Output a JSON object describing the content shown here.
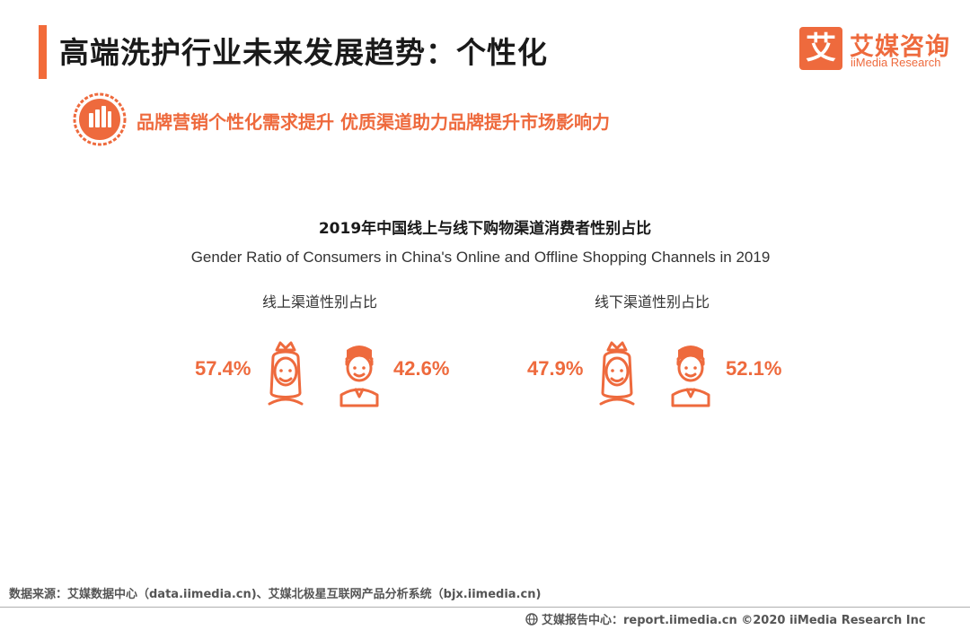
{
  "header": {
    "title": "高端洗护行业未来发展趋势：个性化",
    "logo_mark": "艾",
    "logo_cn": "艾媒咨询",
    "logo_en": "iiMedia Research",
    "subtitle": "品牌营销个性化需求提升  优质渠道助力品牌提升市场影响力"
  },
  "colors": {
    "accent": "#EE6A3D",
    "text": "#1a1a1a"
  },
  "chart_data": {
    "type": "pictogram",
    "title": "2019年中国线上与线下购物渠道消费者性别占比",
    "subtitle": "Gender Ratio of Consumers in China's Online and Offline Shopping Channels in 2019",
    "categories": [
      "女",
      "男"
    ],
    "panels": [
      {
        "label": "线上渠道性别占比",
        "female": 57.4,
        "male": 42.6,
        "female_text": "57.4%",
        "male_text": "42.6%"
      },
      {
        "label": "线下渠道性别占比",
        "female": 47.9,
        "male": 52.1,
        "female_text": "47.9%",
        "male_text": "52.1%"
      }
    ],
    "unit": "%"
  },
  "icons": {
    "female": "woman-crown-icon",
    "male": "man-tie-icon",
    "badge": "bars-badge-icon",
    "globe": "globe-icon"
  },
  "footer": {
    "source": "数据来源：艾媒数据中心（data.iimedia.cn)、艾媒北极星互联网产品分析系统（bjx.iimedia.cn)",
    "brand": "艾媒报告中心：report.iimedia.cn    ©2020  iiMedia Research  Inc"
  }
}
